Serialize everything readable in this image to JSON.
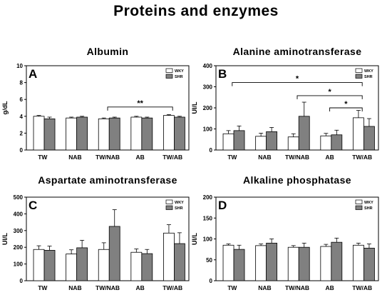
{
  "figure_title": "Proteins and enzymes",
  "chart_data": [
    {
      "type": "bar",
      "panel": "A",
      "title": "Albumin",
      "ylabel": "g/dL",
      "ylim": [
        0,
        10
      ],
      "yticks": [
        0,
        2,
        4,
        6,
        8,
        10
      ],
      "categories": [
        "TW",
        "NAB",
        "TW/NAB",
        "AB",
        "TW/AB"
      ],
      "series": [
        {
          "name": "WKY",
          "color": "#ffffff",
          "values": [
            4.0,
            3.8,
            3.7,
            3.9,
            4.1
          ],
          "errors": [
            0.1,
            0.1,
            0.1,
            0.1,
            0.1
          ]
        },
        {
          "name": "SHR",
          "color": "#808080",
          "values": [
            3.7,
            3.9,
            3.8,
            3.8,
            3.9
          ],
          "errors": [
            0.2,
            0.1,
            0.1,
            0.1,
            0.1
          ]
        }
      ],
      "annotations": [
        {
          "from": 2,
          "to": 4,
          "label": "**",
          "y": 5.1
        }
      ],
      "legend_position": "top-right"
    },
    {
      "type": "bar",
      "panel": "B",
      "title": "Alanine aminotransferase",
      "ylabel": "UI/L",
      "ylim": [
        0,
        400
      ],
      "yticks": [
        0,
        100,
        200,
        300,
        400
      ],
      "categories": [
        "TW",
        "NAB",
        "TW/NAB",
        "AB",
        "TW/AB"
      ],
      "series": [
        {
          "name": "WKY",
          "color": "#ffffff",
          "values": [
            77,
            65,
            62,
            67,
            153
          ],
          "errors": [
            15,
            15,
            15,
            12,
            35
          ]
        },
        {
          "name": "SHR",
          "color": "#808080",
          "values": [
            92,
            87,
            160,
            72,
            112
          ],
          "errors": [
            22,
            20,
            67,
            22,
            37
          ]
        }
      ],
      "annotations": [
        {
          "from": 0,
          "to": 4,
          "label": "*",
          "y": 320
        },
        {
          "from": 2,
          "to": 4,
          "label": "*",
          "y": 258
        },
        {
          "from": 3,
          "to": 4,
          "label": "*",
          "y": 200
        }
      ],
      "legend_position": "top-right"
    },
    {
      "type": "bar",
      "panel": "C",
      "title": "Aspartate aminotransferase",
      "ylabel": "UI/L",
      "ylim": [
        0,
        500
      ],
      "yticks": [
        0,
        100,
        200,
        300,
        400,
        500
      ],
      "categories": [
        "TW",
        "NAB",
        "TW/NAB",
        "AB",
        "TW/AB"
      ],
      "series": [
        {
          "name": "WKY",
          "color": "#ffffff",
          "values": [
            187,
            160,
            187,
            170,
            285
          ],
          "errors": [
            22,
            25,
            40,
            20,
            50
          ]
        },
        {
          "name": "SHR",
          "color": "#808080",
          "values": [
            182,
            197,
            325,
            162,
            222
          ],
          "errors": [
            25,
            45,
            100,
            25,
            65
          ]
        }
      ],
      "annotations": [],
      "legend_position": "top-right"
    },
    {
      "type": "bar",
      "panel": "D",
      "title": "Alkaline phosphatase",
      "ylabel": "UI/L",
      "ylim": [
        0,
        200
      ],
      "yticks": [
        0,
        50,
        100,
        150,
        200
      ],
      "categories": [
        "TW",
        "NAB",
        "TW/NAB",
        "AB",
        "TW/AB"
      ],
      "series": [
        {
          "name": "WKY",
          "color": "#ffffff",
          "values": [
            85,
            84,
            80,
            82,
            85
          ],
          "errors": [
            3,
            4,
            4,
            5,
            5
          ]
        },
        {
          "name": "SHR",
          "color": "#808080",
          "values": [
            75,
            90,
            80,
            92,
            78
          ],
          "errors": [
            10,
            10,
            10,
            10,
            10
          ]
        }
      ],
      "annotations": [],
      "legend_position": "top-right"
    }
  ]
}
